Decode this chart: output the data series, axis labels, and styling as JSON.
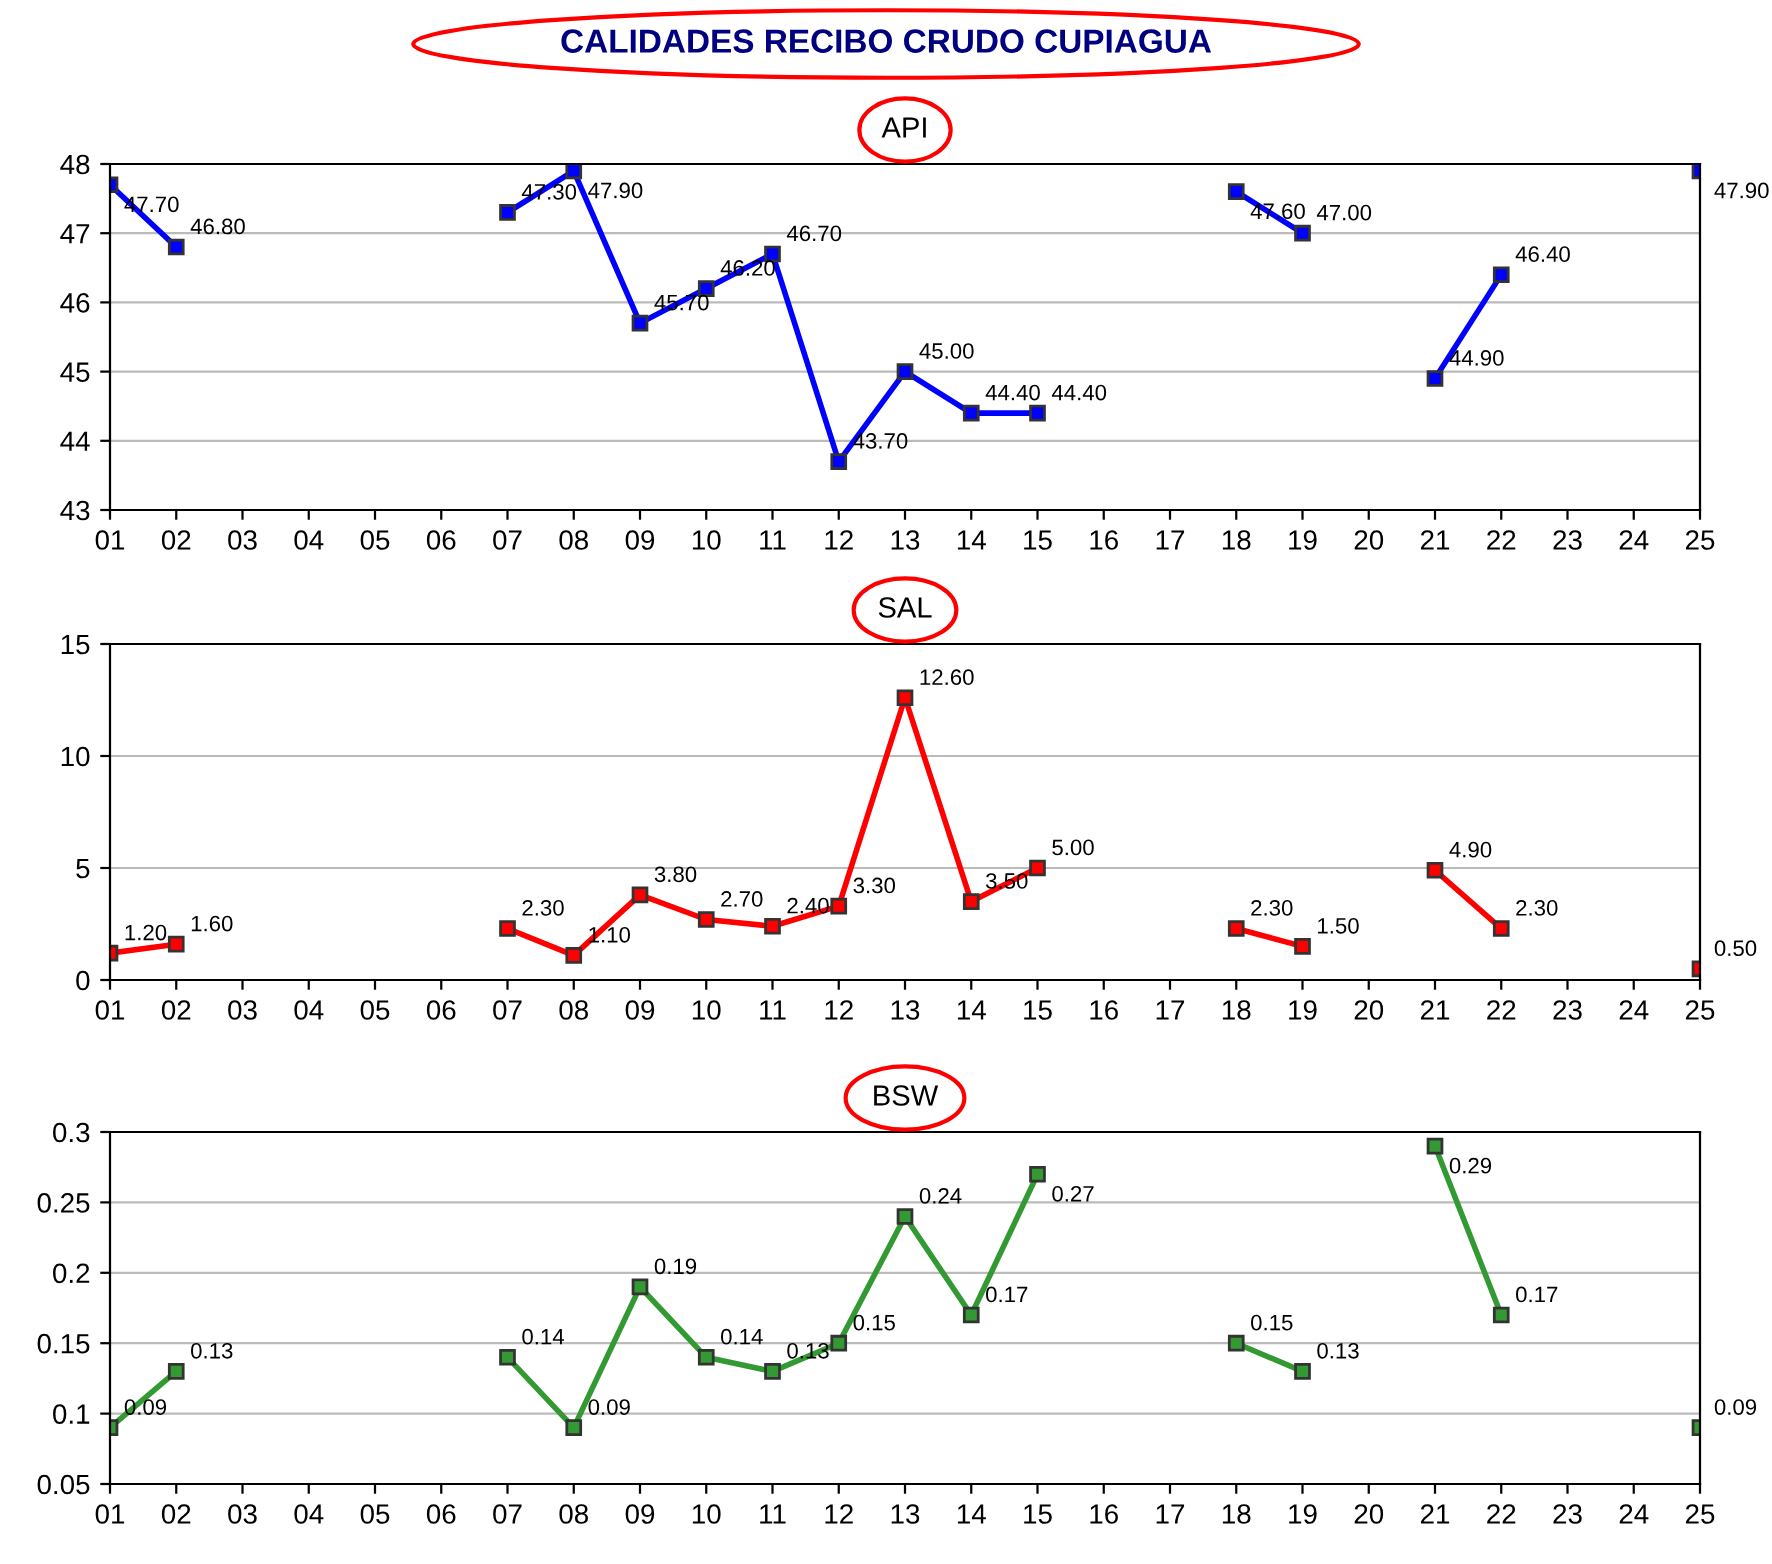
{
  "chart_data": [
    {
      "type": "line",
      "title": "CALIDADES RECIBO CRUDO CUPIAGUA",
      "subtitle": "API",
      "categories": [
        "01",
        "02",
        "03",
        "04",
        "05",
        "06",
        "07",
        "08",
        "09",
        "10",
        "11",
        "12",
        "13",
        "14",
        "15",
        "16",
        "17",
        "18",
        "19",
        "20",
        "21",
        "22",
        "23",
        "24",
        "25"
      ],
      "series": [
        {
          "color": "#0000ff",
          "values": [
            47.7,
            46.8,
            null,
            null,
            null,
            null,
            47.3,
            47.9,
            45.7,
            46.2,
            46.7,
            43.7,
            45.0,
            44.4,
            44.4,
            null,
            null,
            47.6,
            47.0,
            null,
            44.9,
            46.4,
            null,
            null,
            47.9
          ],
          "value_labels": [
            "47.70",
            "46.80",
            null,
            null,
            null,
            null,
            "47.30",
            "47.90",
            "45.70",
            "46.20",
            "46.70",
            "43.70",
            "45.00",
            "44.40",
            "44.40",
            null,
            null,
            "47.60",
            "47.00",
            null,
            "44.90",
            "46.40",
            null,
            null,
            "47.90"
          ]
        }
      ],
      "ylim": [
        43,
        48
      ],
      "yticks": [
        43,
        44,
        45,
        46,
        47,
        48
      ],
      "grid": "y",
      "marker": "square",
      "line_style": "solid",
      "legend": false
    },
    {
      "type": "line",
      "subtitle": "SAL",
      "categories": [
        "01",
        "02",
        "03",
        "04",
        "05",
        "06",
        "07",
        "08",
        "09",
        "10",
        "11",
        "12",
        "13",
        "14",
        "15",
        "16",
        "17",
        "18",
        "19",
        "20",
        "21",
        "22",
        "23",
        "24",
        "25"
      ],
      "series": [
        {
          "color": "#ff0000",
          "values": [
            1.2,
            1.6,
            null,
            null,
            null,
            null,
            2.3,
            1.1,
            3.8,
            2.7,
            2.4,
            3.3,
            12.6,
            3.5,
            5.0,
            null,
            null,
            2.3,
            1.5,
            null,
            4.9,
            2.3,
            null,
            null,
            0.5
          ],
          "value_labels": [
            "1.20",
            "1.60",
            null,
            null,
            null,
            null,
            "2.30",
            "1.10",
            "3.80",
            "2.70",
            "2.40",
            "3.30",
            "12.60",
            "3.50",
            "5.00",
            null,
            null,
            "2.30",
            "1.50",
            null,
            "4.90",
            "2.30",
            null,
            null,
            "0.50"
          ]
        }
      ],
      "ylim": [
        0,
        15
      ],
      "yticks": [
        0,
        5,
        10,
        15
      ],
      "grid": "y",
      "marker": "square",
      "line_style": "solid",
      "legend": false
    },
    {
      "type": "line",
      "subtitle": "BSW",
      "categories": [
        "01",
        "02",
        "03",
        "04",
        "05",
        "06",
        "07",
        "08",
        "09",
        "10",
        "11",
        "12",
        "13",
        "14",
        "15",
        "16",
        "17",
        "18",
        "19",
        "20",
        "21",
        "22",
        "23",
        "24",
        "25"
      ],
      "series": [
        {
          "color": "#339933",
          "values": [
            0.09,
            0.13,
            null,
            null,
            null,
            null,
            0.14,
            0.09,
            0.19,
            0.14,
            0.13,
            0.15,
            0.24,
            0.17,
            0.27,
            null,
            null,
            0.15,
            0.13,
            null,
            0.29,
            0.17,
            null,
            null,
            0.09
          ],
          "value_labels": [
            "0.09",
            "0.13",
            null,
            null,
            null,
            null,
            "0.14",
            "0.09",
            "0.19",
            "0.14",
            "0.13",
            "0.15",
            "0.24",
            "0.17",
            "0.27",
            null,
            null,
            "0.15",
            "0.13",
            null,
            "0.29",
            "0.17",
            null,
            null,
            "0.09"
          ]
        }
      ],
      "ylim": [
        0.05,
        0.3
      ],
      "yticks": [
        0.05,
        0.1,
        0.15,
        0.2,
        0.25,
        0.3
      ],
      "grid": "y",
      "marker": "square",
      "line_style": "solid",
      "legend": false
    }
  ]
}
